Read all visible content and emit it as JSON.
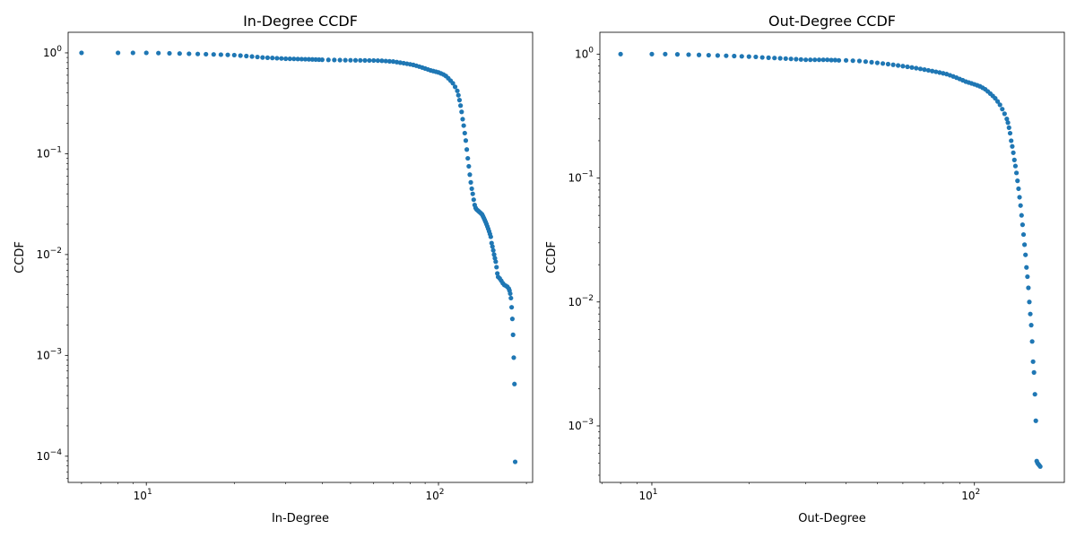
{
  "colors": {
    "marker": "#1f77b4",
    "axis": "#000000",
    "background": "#ffffff"
  },
  "chart_data": [
    {
      "type": "scatter",
      "title": "In-Degree CCDF",
      "xlabel": "In-Degree",
      "ylabel": "CCDF",
      "xscale": "log",
      "yscale": "log",
      "xlim": [
        5.4,
        210
      ],
      "ylim": [
        5.5e-05,
        1.6
      ],
      "xticks": [
        {
          "value": 10,
          "base": "10",
          "exp": "1"
        },
        {
          "value": 100,
          "base": "10",
          "exp": "2"
        }
      ],
      "yticks": [
        {
          "value": 0.0001,
          "base": "10",
          "exp": "−4"
        },
        {
          "value": 0.001,
          "base": "10",
          "exp": "−3"
        },
        {
          "value": 0.01,
          "base": "10",
          "exp": "−2"
        },
        {
          "value": 0.1,
          "base": "10",
          "exp": "−1"
        },
        {
          "value": 1,
          "base": "10",
          "exp": "0"
        }
      ],
      "grid": false,
      "series": [
        {
          "x": [
            6,
            8,
            9,
            10,
            11,
            12,
            13,
            14,
            15,
            16,
            17,
            18,
            19,
            20,
            21,
            22,
            23,
            24,
            25,
            26,
            27,
            28,
            29,
            30,
            31,
            32,
            33,
            34,
            35,
            36,
            37,
            38,
            39,
            40,
            42,
            44,
            46,
            48,
            50,
            52,
            54,
            56,
            58,
            60,
            62,
            64,
            66,
            68,
            70,
            72,
            74,
            76,
            78,
            80,
            82,
            84,
            86,
            88,
            90,
            92,
            94,
            96,
            98,
            100,
            102,
            104,
            106,
            108,
            110,
            112,
            114,
            116,
            117,
            118,
            119,
            120,
            121,
            122,
            123,
            124,
            125,
            126,
            127,
            128,
            129,
            130,
            131,
            132,
            133,
            134,
            135,
            136,
            137,
            138,
            139,
            140,
            141,
            142,
            143,
            144,
            145,
            146,
            147,
            148,
            149,
            150,
            151,
            152,
            153,
            154,
            155,
            156,
            157,
            158,
            159,
            160,
            162,
            164,
            166,
            168,
            170,
            172,
            174,
            175,
            176,
            177,
            178,
            179,
            180,
            181,
            182,
            183
          ],
          "y": [
            1.0,
            1.0,
            1.0,
            1.0,
            0.995,
            0.99,
            0.985,
            0.98,
            0.975,
            0.97,
            0.965,
            0.96,
            0.955,
            0.95,
            0.94,
            0.93,
            0.92,
            0.91,
            0.9,
            0.895,
            0.89,
            0.885,
            0.88,
            0.875,
            0.873,
            0.871,
            0.869,
            0.867,
            0.865,
            0.863,
            0.861,
            0.859,
            0.857,
            0.855,
            0.852,
            0.85,
            0.848,
            0.846,
            0.845,
            0.844,
            0.843,
            0.842,
            0.841,
            0.84,
            0.838,
            0.835,
            0.83,
            0.825,
            0.82,
            0.81,
            0.8,
            0.79,
            0.78,
            0.77,
            0.76,
            0.745,
            0.73,
            0.715,
            0.7,
            0.685,
            0.67,
            0.66,
            0.65,
            0.64,
            0.625,
            0.61,
            0.59,
            0.56,
            0.53,
            0.5,
            0.46,
            0.42,
            0.38,
            0.34,
            0.3,
            0.26,
            0.22,
            0.19,
            0.16,
            0.135,
            0.11,
            0.09,
            0.075,
            0.062,
            0.052,
            0.045,
            0.04,
            0.035,
            0.031,
            0.029,
            0.028,
            0.0275,
            0.027,
            0.0265,
            0.026,
            0.0255,
            0.025,
            0.024,
            0.023,
            0.022,
            0.021,
            0.02,
            0.019,
            0.018,
            0.017,
            0.016,
            0.015,
            0.013,
            0.012,
            0.011,
            0.01,
            0.0092,
            0.0085,
            0.0075,
            0.0065,
            0.006,
            0.0058,
            0.0055,
            0.0052,
            0.005,
            0.0049,
            0.0048,
            0.0046,
            0.0044,
            0.0041,
            0.0037,
            0.003,
            0.0023,
            0.0016,
            0.00095,
            0.00052,
            8.8e-05
          ]
        }
      ]
    },
    {
      "type": "scatter",
      "title": "Out-Degree CCDF",
      "xlabel": "Out-Degree",
      "ylabel": "CCDF",
      "xscale": "log",
      "yscale": "log",
      "xlim": [
        6.9,
        190
      ],
      "ylim": [
        0.00035,
        1.5
      ],
      "xticks": [
        {
          "value": 10,
          "base": "10",
          "exp": "1"
        },
        {
          "value": 100,
          "base": "10",
          "exp": "2"
        }
      ],
      "yticks": [
        {
          "value": 0.001,
          "base": "10",
          "exp": "−3"
        },
        {
          "value": 0.01,
          "base": "10",
          "exp": "−2"
        },
        {
          "value": 0.1,
          "base": "10",
          "exp": "−1"
        },
        {
          "value": 1,
          "base": "10",
          "exp": "0"
        }
      ],
      "grid": false,
      "series": [
        {
          "x": [
            8,
            10,
            11,
            12,
            13,
            14,
            15,
            16,
            17,
            18,
            19,
            20,
            21,
            22,
            23,
            24,
            25,
            26,
            27,
            28,
            29,
            30,
            31,
            32,
            33,
            34,
            35,
            36,
            37,
            38,
            40,
            42,
            44,
            46,
            48,
            50,
            52,
            54,
            56,
            58,
            60,
            62,
            64,
            66,
            68,
            70,
            72,
            74,
            76,
            78,
            80,
            82,
            84,
            86,
            88,
            90,
            92,
            94,
            96,
            98,
            100,
            102,
            104,
            106,
            108,
            110,
            112,
            114,
            116,
            118,
            120,
            122,
            124,
            126,
            127,
            128,
            129,
            130,
            131,
            132,
            133,
            134,
            135,
            136,
            137,
            138,
            139,
            140,
            141,
            142,
            143,
            144,
            145,
            146,
            147,
            148,
            149,
            150,
            151,
            152,
            153,
            154,
            155,
            156,
            157,
            158,
            159,
            160
          ],
          "y": [
            1.0,
            1.0,
            1.0,
            0.995,
            0.99,
            0.985,
            0.98,
            0.975,
            0.97,
            0.965,
            0.96,
            0.955,
            0.95,
            0.94,
            0.935,
            0.93,
            0.925,
            0.92,
            0.915,
            0.91,
            0.905,
            0.9,
            0.9,
            0.9,
            0.9,
            0.9,
            0.9,
            0.895,
            0.895,
            0.89,
            0.89,
            0.885,
            0.88,
            0.87,
            0.86,
            0.85,
            0.84,
            0.83,
            0.82,
            0.81,
            0.8,
            0.79,
            0.78,
            0.77,
            0.76,
            0.75,
            0.74,
            0.73,
            0.72,
            0.71,
            0.7,
            0.69,
            0.675,
            0.66,
            0.645,
            0.63,
            0.615,
            0.6,
            0.59,
            0.58,
            0.57,
            0.56,
            0.55,
            0.535,
            0.52,
            0.5,
            0.48,
            0.46,
            0.44,
            0.415,
            0.39,
            0.36,
            0.33,
            0.3,
            0.28,
            0.255,
            0.23,
            0.2,
            0.18,
            0.16,
            0.14,
            0.125,
            0.11,
            0.095,
            0.082,
            0.07,
            0.06,
            0.05,
            0.042,
            0.035,
            0.029,
            0.024,
            0.019,
            0.016,
            0.013,
            0.01,
            0.008,
            0.0065,
            0.0048,
            0.0033,
            0.0027,
            0.0018,
            0.0011,
            0.00052,
            0.0005,
            0.00049,
            0.00048,
            0.00047
          ]
        }
      ]
    }
  ]
}
